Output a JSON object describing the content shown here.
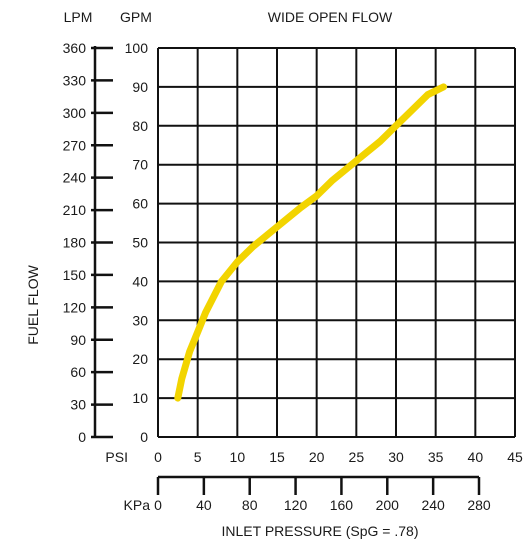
{
  "chart_data": {
    "type": "line",
    "title": "WIDE OPEN FLOW",
    "xlabel": "INLET PRESSURE (SpG = .78)",
    "ylabel": "FUEL FLOW",
    "grid": true,
    "line_color": "#f2d400",
    "axes": {
      "psi": {
        "label": "PSI",
        "ticks": [
          "0",
          "5",
          "10",
          "15",
          "20",
          "25",
          "30",
          "35",
          "40",
          "45"
        ],
        "range": [
          0,
          45
        ]
      },
      "kpa": {
        "label": "KPa",
        "ticks": [
          "0",
          "40",
          "80",
          "120",
          "160",
          "200",
          "240",
          "280"
        ],
        "range": [
          0,
          280
        ]
      },
      "gpm": {
        "label": "GPM",
        "ticks": [
          "0",
          "10",
          "20",
          "30",
          "40",
          "50",
          "60",
          "70",
          "80",
          "90",
          "100"
        ],
        "range": [
          0,
          100
        ]
      },
      "lpm": {
        "label": "LPM",
        "ticks": [
          "0",
          "30",
          "60",
          "90",
          "120",
          "150",
          "180",
          "210",
          "240",
          "270",
          "300",
          "330",
          "360"
        ],
        "range": [
          0,
          360
        ]
      }
    },
    "series": [
      {
        "x": [
          2.5,
          3,
          4,
          5,
          6,
          8,
          10,
          12,
          15,
          18,
          20,
          22,
          25,
          28,
          30,
          32,
          34,
          36
        ],
        "y": [
          10,
          15,
          22,
          27,
          32,
          40,
          45,
          49,
          54,
          59,
          62,
          66,
          71,
          76,
          80,
          84,
          88,
          90
        ]
      }
    ]
  }
}
